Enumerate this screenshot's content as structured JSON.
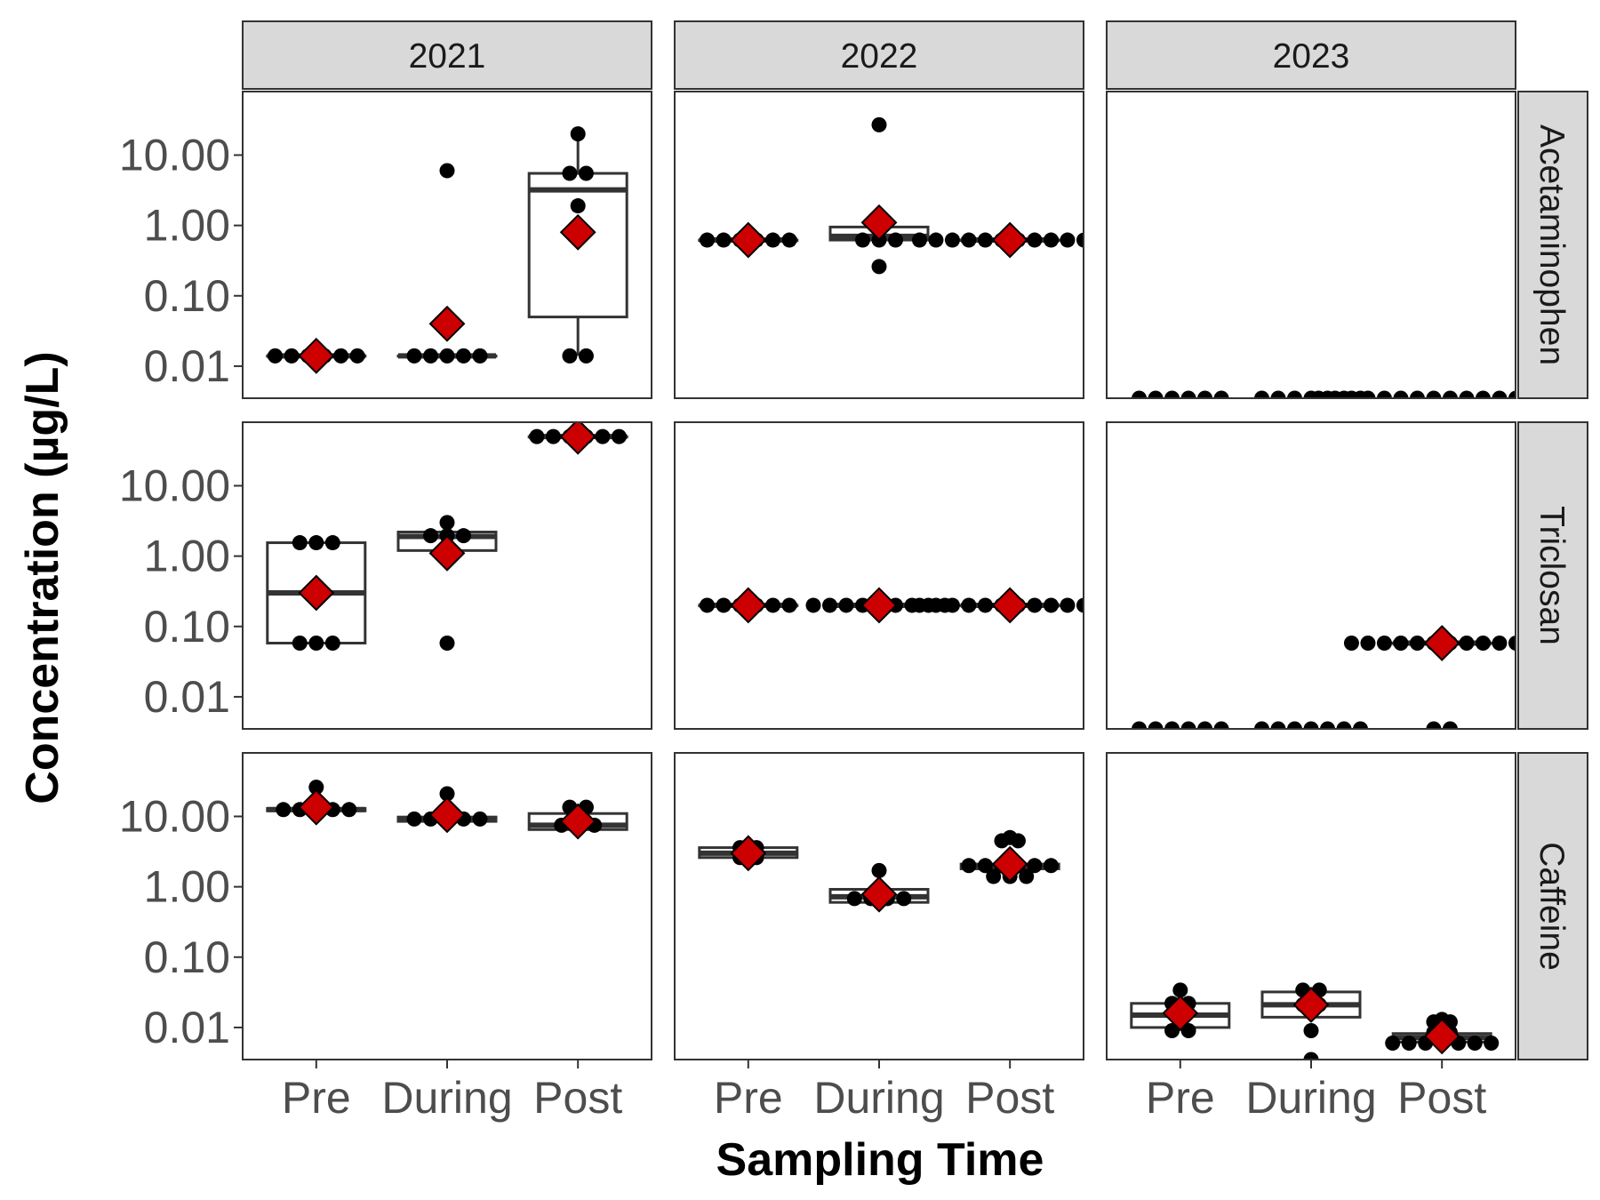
{
  "chart_data": {
    "type": "box",
    "xlabel": "Sampling Time",
    "ylabel": "Concentration (µg/L)",
    "y_scale": "log10",
    "ylim": [
      0.0035,
      80
    ],
    "y_ticks": [
      0.01,
      0.1,
      1,
      10
    ],
    "y_tick_labels": [
      "0.01",
      "0.10",
      "1.00",
      "10.00"
    ],
    "categories": [
      "Pre",
      "During",
      "Post"
    ],
    "columns": [
      "2021",
      "2022",
      "2023"
    ],
    "rows": [
      "Acetaminophen",
      "Triclosan",
      "Caffeine"
    ],
    "colors": {
      "mean_marker": "#cc0000",
      "point": "#000000",
      "box": "#333333",
      "strip_bg": "#d9d9d9",
      "panel_border": "#333333"
    },
    "grid": false,
    "legend": "none",
    "panels": [
      {
        "row": 0,
        "col": 0,
        "groups": [
          {
            "x": "Pre",
            "box": {
              "q1": 0.014,
              "median": 0.014,
              "q3": 0.014
            },
            "mean": 0.014,
            "points": [
              0.014,
              0.014,
              0.014,
              0.014,
              0.014,
              0.014
            ]
          },
          {
            "x": "During",
            "box": {
              "q1": 0.014,
              "median": 0.014,
              "q3": 0.014
            },
            "mean": 0.04,
            "points": [
              6,
              0.014,
              0.014,
              0.014,
              0.014,
              0.014
            ]
          },
          {
            "x": "Post",
            "box": {
              "q1": 0.05,
              "median": 3.2,
              "q3": 5.5,
              "lower": 0.014,
              "upper": 20
            },
            "mean": 0.8,
            "points": [
              20,
              5.5,
              5.5,
              1.9,
              0.014,
              0.014
            ]
          }
        ]
      },
      {
        "row": 0,
        "col": 1,
        "groups": [
          {
            "x": "Pre",
            "box": {
              "q1": 0.62,
              "median": 0.62,
              "q3": 0.62
            },
            "mean": 0.62,
            "points": [
              0.62,
              0.62,
              0.62,
              0.62,
              0.62,
              0.62
            ]
          },
          {
            "x": "During",
            "box": {
              "q1": 0.62,
              "median": 0.7,
              "q3": 0.95
            },
            "mean": 1.1,
            "points": [
              27,
              0.62,
              0.62,
              0.62,
              0.26
            ]
          },
          {
            "x": "Post",
            "box": {
              "q1": 0.62,
              "median": 0.62,
              "q3": 0.62
            },
            "mean": 0.62,
            "points": [
              0.62,
              0.62,
              0.62,
              0.62,
              0.62,
              0.62,
              0.62,
              0.62,
              0.62,
              0.62,
              0.62,
              0.62
            ]
          }
        ]
      },
      {
        "row": 0,
        "col": 2,
        "groups": [
          {
            "x": "Pre",
            "box": null,
            "mean": null,
            "points": [
              0.0035,
              0.0035,
              0.0035,
              0.0035,
              0.0035,
              0.0035
            ]
          },
          {
            "x": "During",
            "box": null,
            "mean": null,
            "points": [
              0.0035,
              0.0035,
              0.0035,
              0.0035,
              0.0035,
              0.0035,
              0.0035
            ]
          },
          {
            "x": "Post",
            "box": null,
            "mean": null,
            "points": [
              0.0035,
              0.0035,
              0.0035,
              0.0035,
              0.0035,
              0.0035,
              0.0035,
              0.0035,
              0.0035,
              0.0035,
              0.0035,
              0.0035,
              0.0035,
              0.0035,
              0.0035,
              0.0035
            ]
          }
        ]
      },
      {
        "row": 1,
        "col": 0,
        "groups": [
          {
            "x": "Pre",
            "box": {
              "q1": 0.058,
              "median": 0.3,
              "q3": 1.55
            },
            "mean": 0.3,
            "points": [
              1.55,
              1.55,
              1.55,
              0.058,
              0.058,
              0.058
            ]
          },
          {
            "x": "During",
            "box": {
              "q1": 1.2,
              "median": 1.9,
              "q3": 2.2
            },
            "mean": 1.1,
            "points": [
              3.0,
              1.95,
              1.95,
              1.95,
              0.058
            ]
          },
          {
            "x": "Post",
            "box": {
              "q1": 50,
              "median": 50,
              "q3": 50
            },
            "mean": 50,
            "points": [
              50,
              50,
              50,
              50,
              50,
              50
            ]
          }
        ]
      },
      {
        "row": 1,
        "col": 1,
        "groups": [
          {
            "x": "Pre",
            "box": {
              "q1": 0.2,
              "median": 0.2,
              "q3": 0.2
            },
            "mean": 0.2,
            "points": [
              0.2,
              0.2,
              0.2,
              0.2,
              0.2,
              0.2
            ]
          },
          {
            "x": "During",
            "box": {
              "q1": 0.2,
              "median": 0.2,
              "q3": 0.2
            },
            "mean": 0.2,
            "points": [
              0.2,
              0.2,
              0.2,
              0.2,
              0.2,
              0.2,
              0.2,
              0.2,
              0.2
            ]
          },
          {
            "x": "Post",
            "box": {
              "q1": 0.2,
              "median": 0.2,
              "q3": 0.2
            },
            "mean": 0.2,
            "points": [
              0.2,
              0.2,
              0.2,
              0.2,
              0.2,
              0.2,
              0.2,
              0.2,
              0.2,
              0.2,
              0.2,
              0.2
            ]
          }
        ]
      },
      {
        "row": 1,
        "col": 2,
        "groups": [
          {
            "x": "Pre",
            "box": null,
            "mean": null,
            "points": [
              0.0035,
              0.0035,
              0.0035,
              0.0035,
              0.0035,
              0.0035
            ]
          },
          {
            "x": "During",
            "box": null,
            "mean": null,
            "points": [
              0.0035,
              0.0035,
              0.0035,
              0.0035,
              0.0035,
              0.0035,
              0.0035
            ]
          },
          {
            "x": "Post",
            "box": {
              "q1": 0.058,
              "median": 0.058,
              "q3": 0.058
            },
            "mean": 0.058,
            "points": [
              0.058,
              0.058,
              0.058,
              0.058,
              0.058,
              0.058,
              0.058,
              0.058,
              0.058,
              0.058,
              0.058,
              0.058,
              0.0035,
              0.0035
            ]
          }
        ]
      },
      {
        "row": 2,
        "col": 0,
        "groups": [
          {
            "x": "Pre",
            "box": {
              "q1": 12,
              "median": 12.5,
              "q3": 13
            },
            "mean": 13.5,
            "points": [
              26,
              12.5,
              12.5,
              12.5,
              12.5,
              12.5
            ]
          },
          {
            "x": "During",
            "box": {
              "q1": 8.5,
              "median": 9.2,
              "q3": 9.8
            },
            "mean": 10.5,
            "points": [
              21,
              9.2,
              9.2,
              9.2,
              9.2,
              9.2
            ]
          },
          {
            "x": "Post",
            "box": {
              "q1": 6.5,
              "median": 7.5,
              "q3": 11
            },
            "mean": 8.5,
            "points": [
              13.5,
              13.5,
              8.5,
              7.5,
              7.5,
              7.5
            ]
          }
        ]
      },
      {
        "row": 2,
        "col": 1,
        "groups": [
          {
            "x": "Pre",
            "box": {
              "q1": 2.6,
              "median": 3.0,
              "q3": 3.6
            },
            "mean": 3.0,
            "points": [
              3.6,
              3.6,
              2.6,
              2.6,
              3.0,
              3.0
            ]
          },
          {
            "x": "During",
            "box": {
              "q1": 0.6,
              "median": 0.72,
              "q3": 0.92
            },
            "mean": 0.78,
            "points": [
              1.7,
              0.68,
              0.68,
              0.68,
              0.68
            ]
          },
          {
            "x": "Post",
            "box": {
              "q1": 1.8,
              "median": 2.0,
              "q3": 2.1
            },
            "mean": 2.1,
            "points": [
              5.0,
              4.5,
              4.5,
              2.0,
              2.0,
              2.0,
              2.0,
              2.0,
              2.0,
              1.4,
              1.4,
              1.4
            ]
          }
        ]
      },
      {
        "row": 2,
        "col": 2,
        "groups": [
          {
            "x": "Pre",
            "box": {
              "q1": 0.01,
              "median": 0.015,
              "q3": 0.022
            },
            "mean": 0.016,
            "points": [
              0.034,
              0.022,
              0.022,
              0.015,
              0.009,
              0.009
            ]
          },
          {
            "x": "During",
            "box": {
              "q1": 0.014,
              "median": 0.021,
              "q3": 0.032
            },
            "mean": 0.021,
            "points": [
              0.034,
              0.034,
              0.021,
              0.021,
              0.009,
              0.0035
            ]
          },
          {
            "x": "Post",
            "box": {
              "q1": 0.0062,
              "median": 0.0072,
              "q3": 0.0082
            },
            "mean": 0.0075,
            "points": [
              0.013,
              0.012,
              0.012,
              0.0085,
              0.0085,
              0.006,
              0.006,
              0.006,
              0.006,
              0.006,
              0.006,
              0.006
            ]
          }
        ]
      }
    ]
  }
}
